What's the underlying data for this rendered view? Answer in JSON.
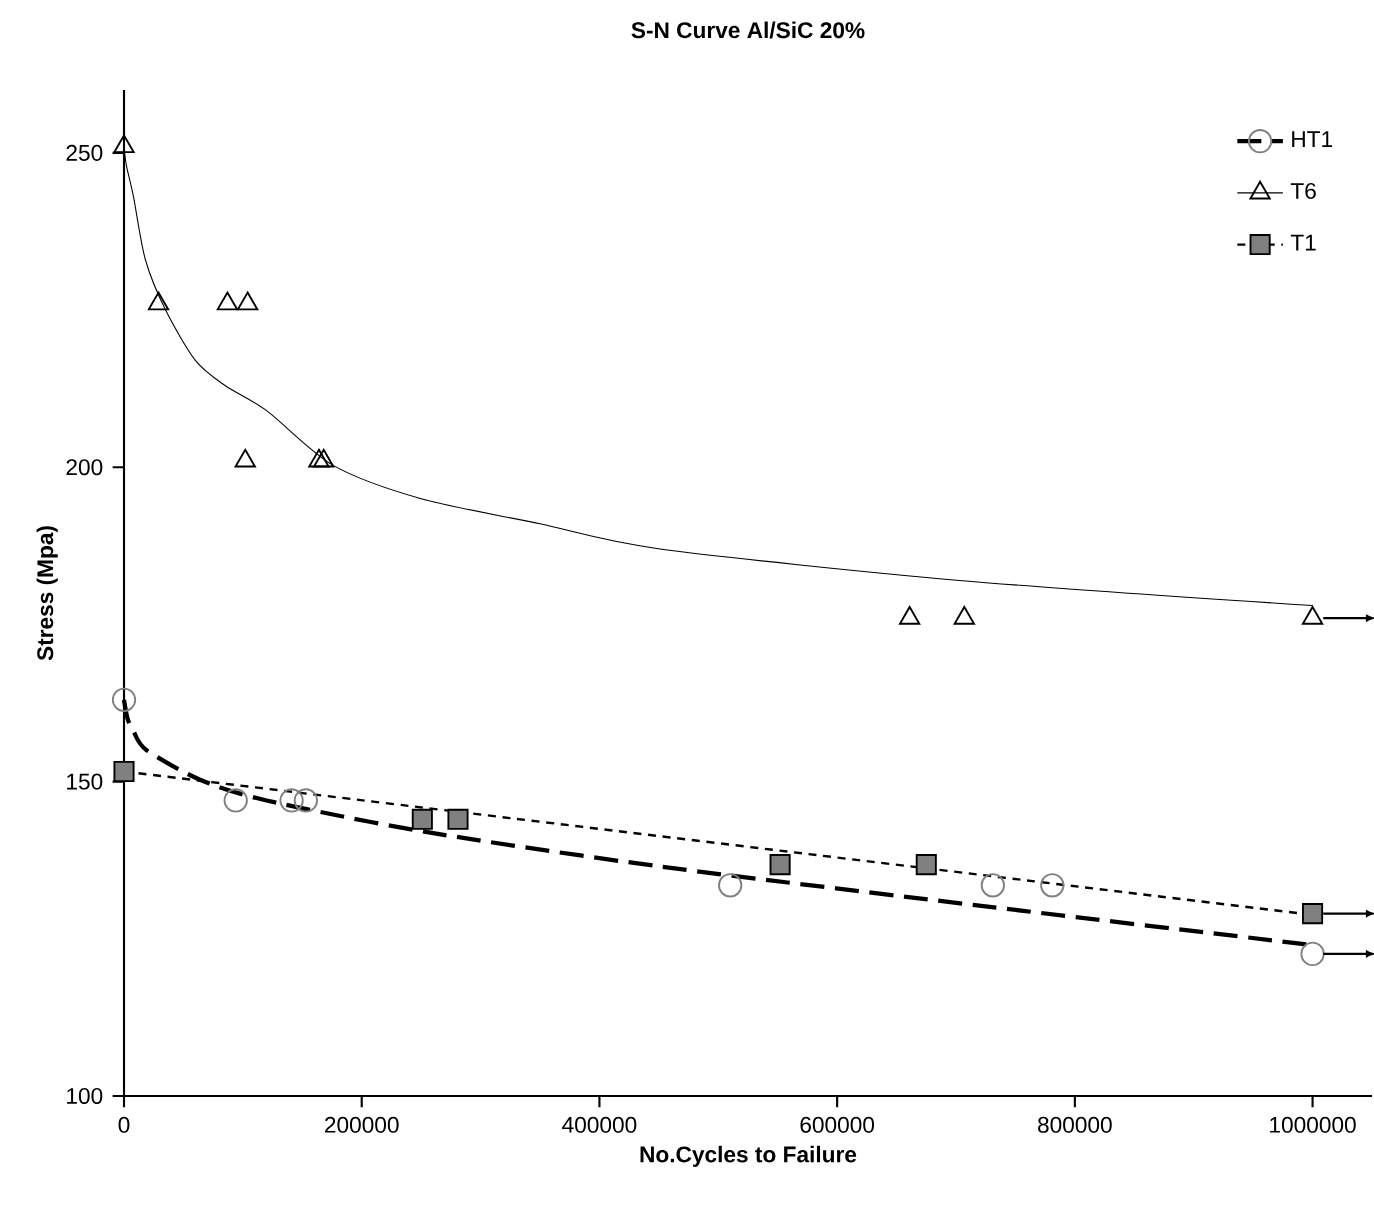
{
  "chart_data": {
    "type": "scatter",
    "title": "S-N Curve Al/SiC 20%",
    "xlabel": "No.Cycles to Failure",
    "ylabel": "Stress (Mpa)",
    "xlim": [
      0,
      1050000
    ],
    "ylim": [
      100,
      260
    ],
    "xticks": [
      0,
      200000,
      400000,
      600000,
      800000,
      1000000
    ],
    "yticks": [
      100,
      150,
      200,
      250
    ],
    "grid": false,
    "legend": "top right",
    "series": [
      {
        "name": "HT1",
        "marker": "circle",
        "line_style": "dashed",
        "color": "#808080",
        "x": [
          0,
          94000,
          141000,
          153000,
          510000,
          731000,
          781000,
          1000000
        ],
        "values": [
          163,
          147,
          147,
          147,
          133.5,
          133.5,
          133.5,
          122.6
        ]
      },
      {
        "name": "T6",
        "marker": "triangle",
        "line_style": "solid",
        "color": "#000000",
        "x": [
          0,
          29000,
          87000,
          104000,
          102000,
          164000,
          168000,
          661000,
          707000,
          1000000
        ],
        "values": [
          251,
          226,
          226,
          226,
          201,
          201,
          201,
          176,
          176,
          176
        ]
      },
      {
        "name": "T1",
        "marker": "square",
        "line_style": "dotted",
        "color": "#808080",
        "x": [
          0,
          251000,
          281000,
          552000,
          675000,
          1000000
        ],
        "values": [
          151.6,
          144,
          144,
          136.8,
          136.8,
          129
        ]
      },
      {
        "type": "line",
        "line_style": "dashed",
        "color": "#000000",
        "x": [
          0,
          3000,
          8000,
          19000,
          64000,
          120000,
          254000,
          451000,
          732000,
          1000000
        ],
        "values": [
          163,
          160,
          158,
          155,
          150.3,
          147,
          142,
          136.5,
          130,
          124
        ]
      },
      {
        "type": "line",
        "line_style": "solid",
        "color": "#000000",
        "x": [
          0,
          2000,
          8000,
          18000,
          35000,
          60000,
          85000,
          120000,
          176000,
          250000,
          350000,
          451000,
          703000,
          1000000
        ],
        "values": [
          251,
          248,
          243,
          233,
          225,
          217,
          213,
          209,
          200.3,
          195,
          191,
          187,
          182,
          178
        ]
      },
      {
        "type": "line",
        "line_style": "dotted",
        "color": "#000000",
        "x": [
          0,
          1000000
        ],
        "values": [
          151.6,
          128.8
        ]
      }
    ]
  }
}
